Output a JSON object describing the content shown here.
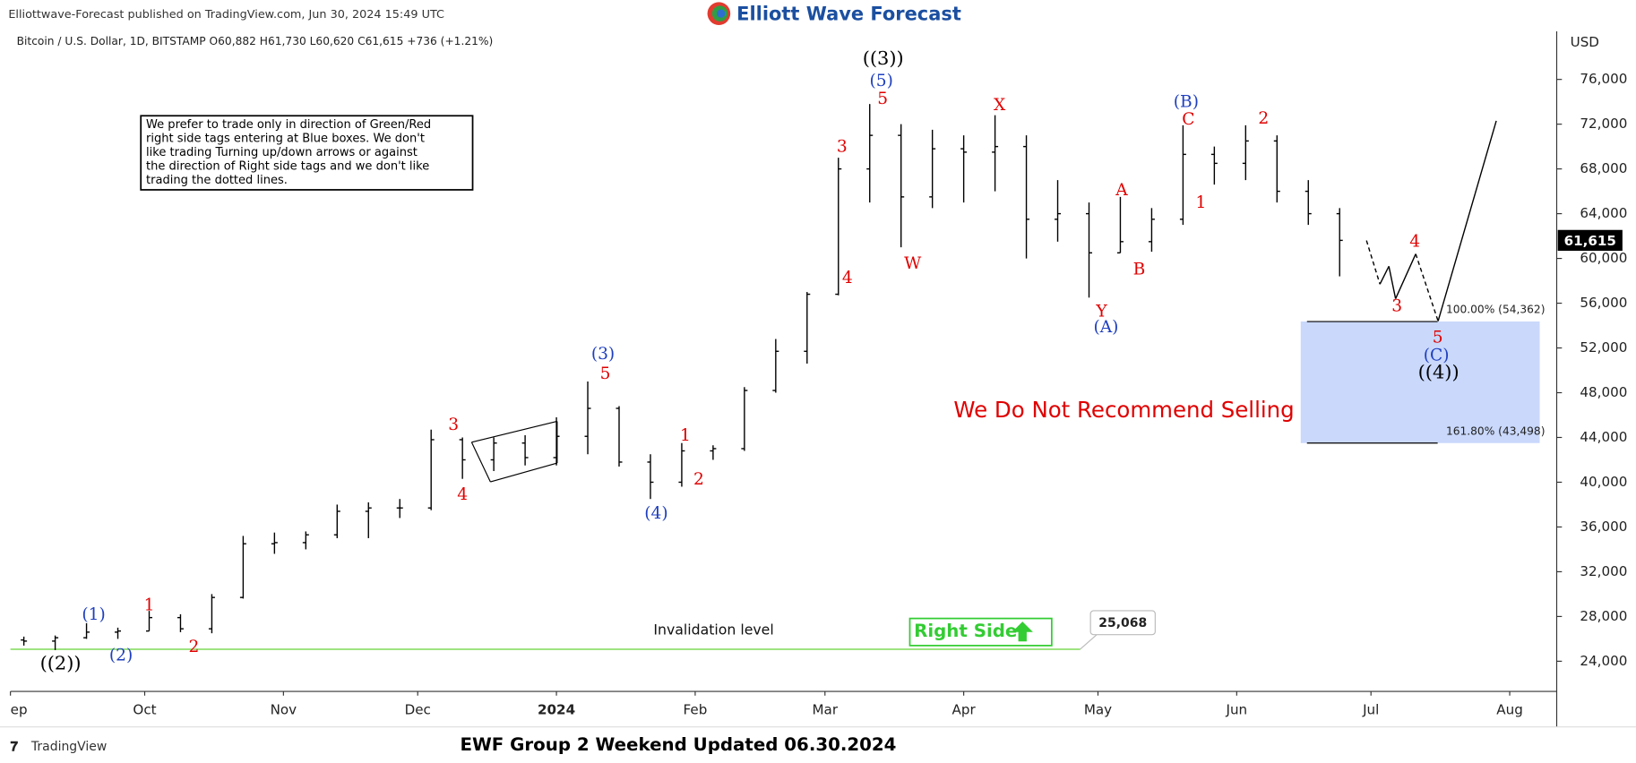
{
  "header": "Elliottwave-Forecast published on TradingView.com, Jun 30, 2024 15:49 UTC",
  "logo": "Elliott Wave Forecast",
  "footer": "EWF Group 2 Weekend Updated 06.30.2024",
  "brand": "TradingView",
  "chart_data": {
    "type": "ohlc",
    "title": "Bitcoin / U.S. Dollar, 1D, BITSTAMP  O60,882 H61,730 L60,620 C61,615 +736 (+1.21%)",
    "currency": "USD",
    "color": "#000000",
    "x": [
      3,
      10,
      17,
      24,
      31,
      38,
      45,
      52,
      59,
      66,
      73,
      80,
      87,
      94,
      101,
      108,
      115,
      122,
      129,
      136,
      143,
      150,
      157,
      164,
      171,
      178,
      185,
      192,
      199,
      206,
      213,
      220,
      227,
      234,
      241,
      248,
      255,
      262,
      269,
      276,
      283,
      290,
      297
    ],
    "open": [
      25900,
      25800,
      26100,
      26600,
      26700,
      27900,
      26900,
      29700,
      34500,
      34600,
      35300,
      37400,
      37700,
      37700,
      43800,
      42000,
      43500,
      42200,
      44100,
      46600,
      41800,
      40000,
      42800,
      43000,
      48200,
      51700,
      56800,
      68000,
      71000,
      65500,
      69800,
      69500,
      70000,
      63500,
      64000,
      60500,
      61500,
      63500,
      69300,
      68500,
      70500,
      66000,
      64000
    ],
    "high": [
      26200,
      26300,
      27400,
      27000,
      28500,
      28200,
      30000,
      35200,
      35500,
      35600,
      38000,
      38200,
      38500,
      44700,
      44000,
      44000,
      44200,
      45800,
      49000,
      46800,
      42500,
      43500,
      43300,
      48500,
      52800,
      57000,
      69000,
      73800,
      72000,
      71500,
      71000,
      72800,
      71000,
      67000,
      65000,
      65500,
      64500,
      71900,
      70000,
      71900,
      71000,
      67000,
      64500
    ],
    "low": [
      25400,
      25000,
      26000,
      26000,
      26700,
      26600,
      26500,
      29600,
      33600,
      34000,
      35000,
      35000,
      36800,
      37500,
      40300,
      41000,
      41500,
      41500,
      42500,
      41400,
      38500,
      39600,
      42000,
      42800,
      48000,
      50600,
      56700,
      65000,
      61000,
      64500,
      65000,
      66000,
      60000,
      61500,
      56500,
      60500,
      60600,
      63000,
      66600,
      67000,
      65000,
      63000,
      58400
    ],
    "close": [
      25800,
      26100,
      26600,
      26700,
      27900,
      26900,
      29700,
      34500,
      34600,
      35300,
      37400,
      37700,
      37700,
      43800,
      42000,
      43500,
      42200,
      44100,
      46600,
      41800,
      40000,
      42800,
      43000,
      48200,
      51700,
      56800,
      68000,
      71000,
      65500,
      69800,
      69500,
      70000,
      63500,
      64000,
      60500,
      61500,
      63500,
      69300,
      68500,
      70500,
      66000,
      64000,
      61615
    ],
    "xlim": [
      0,
      345.5
    ],
    "xticks": [
      {
        "value": 0,
        "label": "ep"
      },
      {
        "value": 30,
        "label": "Oct"
      },
      {
        "value": 61,
        "label": "Nov"
      },
      {
        "value": 91,
        "label": "Dec"
      },
      {
        "value": 122,
        "label": "2024"
      },
      {
        "value": 153,
        "label": "Feb"
      },
      {
        "value": 182,
        "label": "Mar"
      },
      {
        "value": 213,
        "label": "Apr"
      },
      {
        "value": 243,
        "label": "May"
      },
      {
        "value": 274,
        "label": "Jun"
      },
      {
        "value": 304,
        "label": "Jul"
      },
      {
        "value": 335,
        "label": "Aug"
      }
    ],
    "ylim": [
      21300,
      80300
    ],
    "yticks": [
      {
        "value": 24000,
        "label": "24,000"
      },
      {
        "value": 28000,
        "label": "28,000"
      },
      {
        "value": 32000,
        "label": "32,000"
      },
      {
        "value": 36000,
        "label": "36,000"
      },
      {
        "value": 40000,
        "label": "40,000"
      },
      {
        "value": 44000,
        "label": "44,000"
      },
      {
        "value": 48000,
        "label": "48,000"
      },
      {
        "value": 52000,
        "label": "52,000"
      },
      {
        "value": 56000,
        "label": "56,000"
      },
      {
        "value": 60000,
        "label": "60,000"
      },
      {
        "value": 64000,
        "label": "64,000"
      },
      {
        "value": 68000,
        "label": "68,000"
      },
      {
        "value": 72000,
        "label": "72,000"
      },
      {
        "value": 76000,
        "label": "76,000"
      }
    ],
    "last_price": {
      "value": 61615,
      "label": "61,615"
    },
    "projection": {
      "x": [
        303,
        306,
        308,
        309.5,
        314,
        319,
        332
      ],
      "y": [
        61600,
        57700,
        59300,
        56400,
        60400,
        54400,
        72300
      ],
      "dashed": [
        true,
        false,
        false,
        false,
        true,
        false
      ]
    },
    "fib_zone": {
      "x": [
        288.3,
        341.7
      ],
      "line_x": [
        289.7,
        318.9
      ],
      "color": "#c9d8fb",
      "levels": [
        {
          "value": 54362,
          "label": "100.00% (54,362)"
        },
        {
          "value": 43498,
          "label": "161.80% (43,498)"
        }
      ]
    },
    "invalidation": {
      "value": 25068,
      "label": "25,068",
      "x": [
        0,
        239
      ],
      "text": "Invalidation level",
      "color": "#90e070"
    },
    "right_side": "Right Side",
    "message": "We Do Not Recommend Selling",
    "note": [
      "We prefer to trade only in direction of Green/Red",
      "right side tags entering at Blue boxes. We don't",
      "like trading Turning up/down arrows or against",
      "the direction of Right side tags and we don't like",
      "trading the dotted lines."
    ],
    "labels": [
      {
        "text": "((2))",
        "x": 11.2,
        "y": 23720,
        "color": "#000000"
      },
      {
        "text": "(1)",
        "x": 18.6,
        "y": 28100,
        "color": "#1f3fbf"
      },
      {
        "text": "(2)",
        "x": 24.7,
        "y": 24470,
        "color": "#1f3fbf"
      },
      {
        "text": "1",
        "x": 31,
        "y": 28940,
        "color": "#e00000"
      },
      {
        "text": "2",
        "x": 41,
        "y": 25210,
        "color": "#e00000"
      },
      {
        "text": "3",
        "x": 99,
        "y": 45060,
        "color": "#e00000"
      },
      {
        "text": "4",
        "x": 101,
        "y": 38820,
        "color": "#e00000"
      },
      {
        "text": "(3)",
        "x": 132.4,
        "y": 51400,
        "color": "#1f3fbf"
      },
      {
        "text": "5",
        "x": 132.9,
        "y": 49630,
        "color": "#e00000"
      },
      {
        "text": "(4)",
        "x": 144.3,
        "y": 37140,
        "color": "#1f3fbf"
      },
      {
        "text": "1",
        "x": 150.8,
        "y": 44130,
        "color": "#e00000"
      },
      {
        "text": "2",
        "x": 153.8,
        "y": 40210,
        "color": "#e00000"
      },
      {
        "text": "3",
        "x": 185.8,
        "y": 69940,
        "color": "#e00000"
      },
      {
        "text": "4",
        "x": 187,
        "y": 58200,
        "color": "#e00000"
      },
      {
        "text": "((3))",
        "x": 195,
        "y": 77770,
        "color": "#000000"
      },
      {
        "text": "(5)",
        "x": 194.6,
        "y": 75810,
        "color": "#1f3fbf"
      },
      {
        "text": "5",
        "x": 194.9,
        "y": 74230,
        "color": "#e00000"
      },
      {
        "text": "W",
        "x": 201.6,
        "y": 59500,
        "color": "#e00000"
      },
      {
        "text": "X",
        "x": 221,
        "y": 73670,
        "color": "#e00000"
      },
      {
        "text": "Y",
        "x": 243.8,
        "y": 55220,
        "color": "#e00000"
      },
      {
        "text": "(A)",
        "x": 244.8,
        "y": 53820,
        "color": "#1f3fbf"
      },
      {
        "text": "A",
        "x": 248.3,
        "y": 66030,
        "color": "#e00000"
      },
      {
        "text": "B",
        "x": 252.2,
        "y": 58950,
        "color": "#e00000"
      },
      {
        "text": "(B)",
        "x": 262.7,
        "y": 73950,
        "color": "#1f3fbf"
      },
      {
        "text": "C",
        "x": 263.2,
        "y": 72370,
        "color": "#e00000"
      },
      {
        "text": "1",
        "x": 266,
        "y": 64910,
        "color": "#e00000"
      },
      {
        "text": "2",
        "x": 280,
        "y": 72460,
        "color": "#e00000"
      },
      {
        "text": "3",
        "x": 309.8,
        "y": 55690,
        "color": "#e00000"
      },
      {
        "text": "4",
        "x": 313.8,
        "y": 61460,
        "color": "#e00000"
      },
      {
        "text": "5",
        "x": 318.9,
        "y": 52890,
        "color": "#e00000"
      },
      {
        "text": "(C)",
        "x": 318.6,
        "y": 51300,
        "color": "#1f3fbf"
      },
      {
        "text": "((4))",
        "x": 319.1,
        "y": 49720,
        "color": "#000000"
      }
    ]
  }
}
